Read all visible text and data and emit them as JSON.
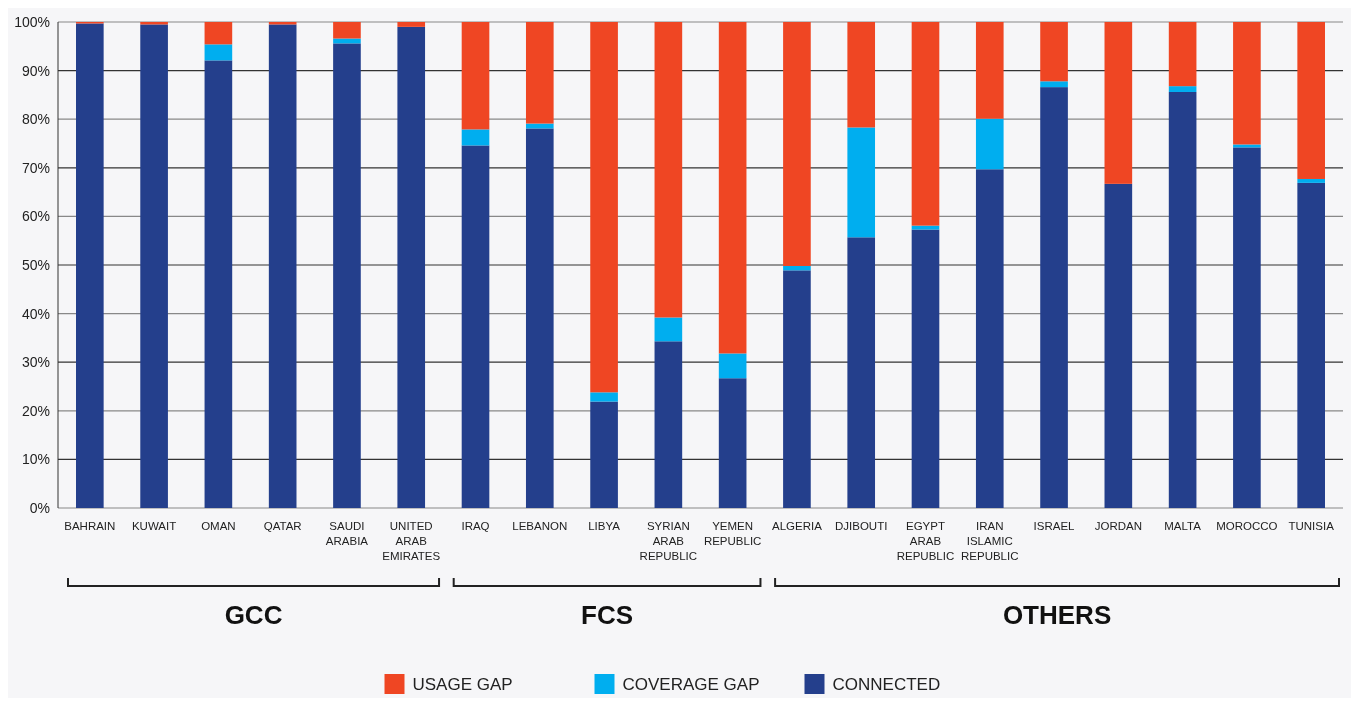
{
  "chart_data": {
    "type": "bar",
    "stacked": true,
    "categories": [
      "BAHRAIN",
      "KUWAIT",
      "OMAN",
      "QATAR",
      "SAUDI ARABIA",
      "UNITED ARAB EMIRATES",
      "IRAQ",
      "LEBANON",
      "LIBYA",
      "SYRIAN ARAB REPUBLIC",
      "YEMEN REPUBLIC",
      "ALGERIA",
      "DJIBOUTI",
      "EGYPT ARAB REPUBLIC",
      "IRAN ISLAMIC REPUBLIC",
      "ISRAEL",
      "JORDAN",
      "MALTA",
      "MOROCCO",
      "TUNISIA"
    ],
    "series": [
      {
        "name": "CONNECTED",
        "color": "#243f8c",
        "values": [
          99.7,
          99.5,
          92.1,
          99.5,
          95.6,
          99.0,
          74.6,
          78.1,
          21.9,
          34.3,
          26.7,
          48.9,
          55.7,
          57.3,
          69.7,
          86.6,
          66.7,
          85.6,
          74.2,
          66.9
        ]
      },
      {
        "name": "COVERAGE GAP",
        "color": "#00aeef",
        "values": [
          0,
          0,
          3.3,
          0,
          1.0,
          0,
          3.3,
          1.0,
          1.9,
          4.9,
          5.1,
          0.9,
          22.6,
          0.8,
          10.4,
          1.2,
          0,
          1.2,
          0.6,
          0.8
        ]
      },
      {
        "name": "USAGE GAP",
        "color": "#ef4623",
        "values": [
          0.3,
          0.5,
          4.6,
          0.5,
          3.4,
          1.0,
          22.1,
          20.9,
          76.2,
          60.8,
          68.2,
          50.2,
          21.7,
          41.9,
          19.9,
          12.2,
          33.3,
          13.2,
          25.2,
          32.3
        ]
      }
    ],
    "ylim": [
      0,
      100
    ],
    "yticks": [
      {
        "value": 0,
        "label": "0%"
      },
      {
        "value": 10,
        "label": "10%"
      },
      {
        "value": 20,
        "label": "20%"
      },
      {
        "value": 30,
        "label": "30%"
      },
      {
        "value": 40,
        "label": "40%"
      },
      {
        "value": 50,
        "label": "50%"
      },
      {
        "value": 60,
        "label": "60%"
      },
      {
        "value": 70,
        "label": "70%"
      },
      {
        "value": 80,
        "label": "80%"
      },
      {
        "value": 90,
        "label": "90%"
      },
      {
        "value": 100,
        "label": "100%"
      }
    ],
    "grid": "y",
    "legend": "bottom",
    "annotations": [
      "GCC",
      "FCS",
      "OTHERS"
    ]
  }
}
